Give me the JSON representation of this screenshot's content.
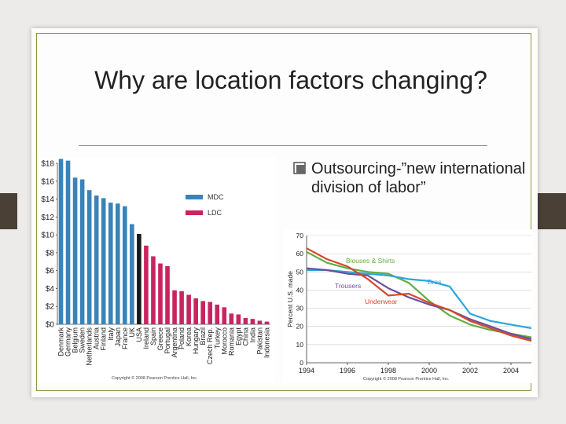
{
  "slide": {
    "title": "Why are location factors changing?",
    "bullet": "Outsourcing-”new international division of labor”"
  },
  "colors": {
    "accent": "#8a9a3c",
    "mdc": "#3a83b8",
    "ldc": "#c9245f",
    "black_bar": "#1a1a1a"
  },
  "chart_data": [
    {
      "type": "bar",
      "title": "",
      "xlabel": "",
      "ylabel": "",
      "ylim": [
        0,
        18
      ],
      "yticks": [
        "$0",
        "$2",
        "$4",
        "$6",
        "$8",
        "$10",
        "$12",
        "$14",
        "$16",
        "$18"
      ],
      "categories": [
        "Denmark",
        "Germany",
        "Belgium",
        "Sweden",
        "Netherlands",
        "Austria",
        "Finland",
        "Italy",
        "Japan",
        "France",
        "UK",
        "USA",
        "Ireland",
        "Spain",
        "Greece",
        "Portugal",
        "Argentina",
        "Poland",
        "Korea",
        "Hungary",
        "Brazil",
        "Czech Rep.",
        "Turkey",
        "Morocco",
        "Romania",
        "Egypt",
        "China",
        "India",
        "Pakistan",
        "Indonesia"
      ],
      "values": [
        18.5,
        18.3,
        16.4,
        16.2,
        15.0,
        14.4,
        14.1,
        13.6,
        13.5,
        13.2,
        11.2,
        10.1,
        8.8,
        7.6,
        6.8,
        6.5,
        3.8,
        3.7,
        3.3,
        2.9,
        2.6,
        2.5,
        2.2,
        1.9,
        1.2,
        1.1,
        0.7,
        0.6,
        0.4,
        0.3
      ],
      "groups": [
        "MDC",
        "MDC",
        "MDC",
        "MDC",
        "MDC",
        "MDC",
        "MDC",
        "MDC",
        "MDC",
        "MDC",
        "MDC",
        "USA",
        "LDC",
        "LDC",
        "LDC",
        "LDC",
        "LDC",
        "LDC",
        "LDC",
        "LDC",
        "LDC",
        "LDC",
        "LDC",
        "LDC",
        "LDC",
        "LDC",
        "LDC",
        "LDC",
        "LDC",
        "LDC"
      ],
      "legend": [
        {
          "name": "MDC",
          "color": "#3a83b8"
        },
        {
          "name": "LDC",
          "color": "#c9245f"
        }
      ],
      "legend_position": "top-right",
      "copyright": "Copyright © 2008 Pearson Prentice Hall, Inc."
    },
    {
      "type": "line",
      "title": "",
      "xlabel": "",
      "ylabel": "Percent U.S. made",
      "xlim": [
        1994,
        2005
      ],
      "ylim": [
        0,
        70
      ],
      "xticks": [
        "1994",
        "1996",
        "1998",
        "2000",
        "2002",
        "2004"
      ],
      "yticks": [
        "0",
        "10",
        "20",
        "30",
        "40",
        "50",
        "60",
        "70"
      ],
      "series": [
        {
          "name": "Blouses & Shirts",
          "color": "#5fae44",
          "x": [
            1994,
            1995,
            1996,
            1997,
            1998,
            1999,
            2000,
            2001,
            2002,
            2003,
            2004,
            2005
          ],
          "y": [
            61,
            55,
            52,
            50,
            49,
            44,
            34,
            26,
            21,
            18,
            16,
            14
          ]
        },
        {
          "name": "Bras",
          "color": "#2aa7d9",
          "x": [
            1994,
            1995,
            1996,
            1997,
            1998,
            1999,
            2000,
            2001,
            2002,
            2003,
            2004,
            2005
          ],
          "y": [
            51,
            51,
            50,
            49,
            48,
            46,
            45,
            42,
            27,
            23,
            21,
            19
          ]
        },
        {
          "name": "Trousers",
          "color": "#6d4f9c",
          "x": [
            1994,
            1995,
            1996,
            1997,
            1998,
            1999,
            2000,
            2001,
            2002,
            2003,
            2004,
            2005
          ],
          "y": [
            52,
            51,
            49,
            48,
            41,
            36,
            32,
            29,
            24,
            20,
            16,
            13
          ]
        },
        {
          "name": "Underwear",
          "color": "#d7482a",
          "x": [
            1994,
            1995,
            1996,
            1997,
            1998,
            1999,
            2000,
            2001,
            2002,
            2003,
            2004,
            2005
          ],
          "y": [
            63,
            57,
            53,
            46,
            37,
            38,
            33,
            29,
            23,
            19,
            15,
            12
          ]
        }
      ],
      "copyright": "Copyright © 2008 Pearson Prentice Hall, Inc."
    }
  ]
}
